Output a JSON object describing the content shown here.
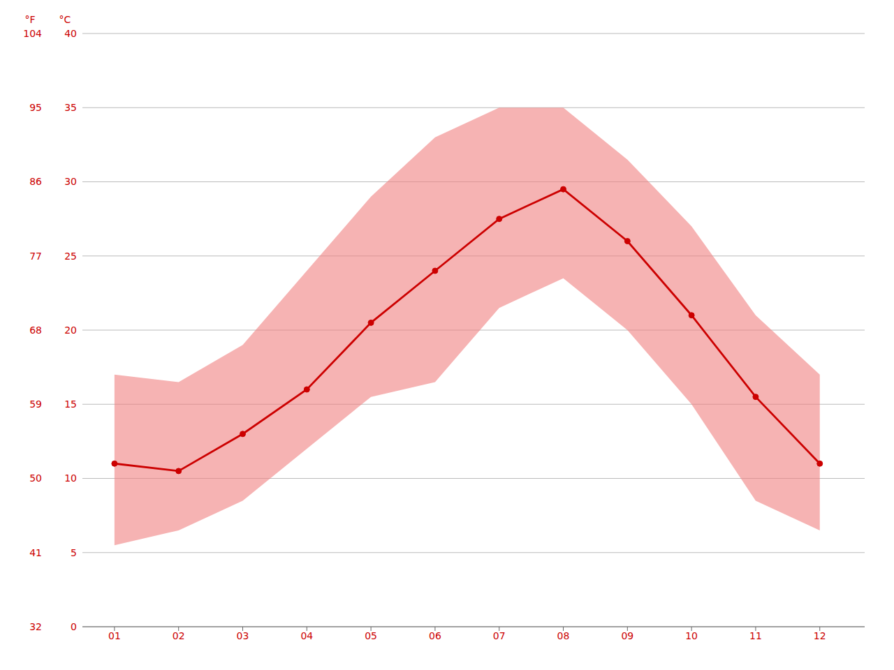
{
  "chart_data": {
    "type": "line",
    "x": [
      1,
      2,
      3,
      4,
      5,
      6,
      7,
      8,
      9,
      10,
      11,
      12
    ],
    "xlim": [
      0.5,
      12.7
    ],
    "xticks": [
      {
        "value": 1,
        "label": "01"
      },
      {
        "value": 2,
        "label": "02"
      },
      {
        "value": 3,
        "label": "03"
      },
      {
        "value": 4,
        "label": "04"
      },
      {
        "value": 5,
        "label": "05"
      },
      {
        "value": 6,
        "label": "06"
      },
      {
        "value": 7,
        "label": "07"
      },
      {
        "value": 8,
        "label": "08"
      },
      {
        "value": 9,
        "label": "09"
      },
      {
        "value": 10,
        "label": "10"
      },
      {
        "value": 11,
        "label": "11"
      },
      {
        "value": 12,
        "label": "12"
      }
    ],
    "ylim": [
      0,
      40
    ],
    "yticks": [
      0,
      5,
      10,
      15,
      20,
      25,
      30,
      35,
      40
    ],
    "ylabel": "°C",
    "y2lim": [
      32,
      104
    ],
    "y2ticks": [
      32,
      41,
      50,
      59,
      68,
      77,
      86,
      95,
      104
    ],
    "y2label": "°F",
    "grid": true,
    "series": [
      {
        "type": "area",
        "color": "#f08080",
        "low": [
          5.5,
          6.5,
          8.5,
          12.0,
          15.5,
          16.5,
          21.5,
          23.5,
          20.0,
          15.0,
          8.5,
          6.5
        ],
        "high": [
          17.0,
          16.5,
          19.0,
          24.0,
          29.0,
          33.0,
          35.0,
          35.0,
          31.5,
          27.0,
          21.0,
          17.0
        ]
      },
      {
        "type": "line",
        "color": "#cc0000",
        "marker": "o",
        "values": [
          11.0,
          10.5,
          13.0,
          16.0,
          20.5,
          24.0,
          27.5,
          29.5,
          26.0,
          21.0,
          15.5,
          11.0
        ]
      }
    ]
  }
}
